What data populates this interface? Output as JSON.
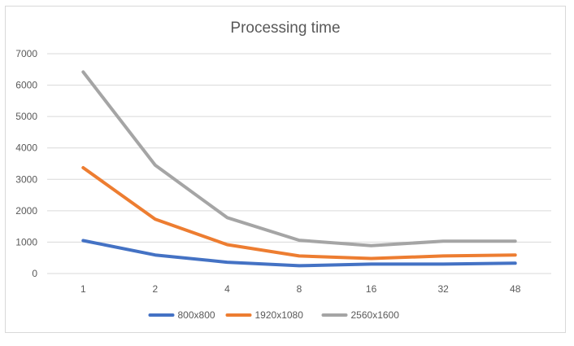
{
  "chart_data": {
    "type": "line",
    "title": "Processing time",
    "xlabel": "",
    "ylabel": "",
    "categories": [
      "1",
      "2",
      "4",
      "8",
      "16",
      "32",
      "48"
    ],
    "ylim": [
      0,
      7000
    ],
    "yticks": [
      0,
      1000,
      2000,
      3000,
      4000,
      5000,
      6000,
      7000
    ],
    "grid": true,
    "legend": "bottom",
    "series": [
      {
        "name": "800x800",
        "color": "#4472c4",
        "values": [
          1050,
          590,
          360,
          250,
          300,
          300,
          330
        ]
      },
      {
        "name": "1920x1080",
        "color": "#ed7d31",
        "values": [
          3370,
          1730,
          920,
          560,
          480,
          560,
          590
        ]
      },
      {
        "name": "2560x1600",
        "color": "#a5a5a5",
        "values": [
          6420,
          3450,
          1780,
          1060,
          890,
          1030,
          1030
        ]
      }
    ]
  }
}
